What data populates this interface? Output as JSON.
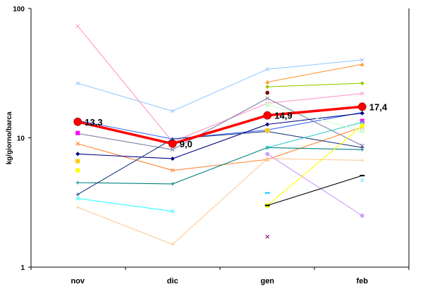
{
  "chart_data": {
    "type": "line",
    "title": "",
    "xlabel": "",
    "ylabel": "kg/giorno/barca",
    "yscale": "log",
    "ylim": [
      1,
      100
    ],
    "yticks": [
      "1",
      "10",
      "100"
    ],
    "grid": false,
    "legend": "none",
    "categories": [
      "nov",
      "dic",
      "gen",
      "feb"
    ],
    "highlight": {
      "color": "#ff0000",
      "values": [
        13.3,
        9.0,
        14.9,
        17.4
      ],
      "labels": [
        "13,3",
        "9,0",
        "14,9",
        "17,4"
      ]
    },
    "series": [
      {
        "color": "#ff99cc",
        "marker": "x",
        "values": [
          73,
          9.3,
          18.5,
          22
        ]
      },
      {
        "color": "#99ccff",
        "marker": "x",
        "values": [
          26.4,
          16.1,
          33.9,
          40
        ]
      },
      {
        "color": "#3366ff",
        "marker": "triangle",
        "values": [
          13.6,
          9.8,
          11.5,
          15.7
        ]
      },
      {
        "color": "#8080a8",
        "marker": "x",
        "values": [
          10.8,
          8.1,
          20.2,
          8.7
        ]
      },
      {
        "color": "#ff8533",
        "marker": "x",
        "values": [
          9.0,
          5.6,
          6.8,
          12.1
        ]
      },
      {
        "color": "#000080",
        "marker": "diamond",
        "values": [
          7.5,
          6.9,
          12.7,
          15.5
        ]
      },
      {
        "color": "#008080",
        "marker": "plus",
        "values": [
          4.5,
          4.4,
          8.4,
          8.1
        ]
      },
      {
        "color": "#1f3f7f",
        "marker": "plus",
        "values": [
          3.65,
          9.8,
          11.2,
          8.4
        ]
      },
      {
        "color": "#33ffff",
        "marker": "x",
        "values": [
          3.4,
          2.7,
          null,
          null
        ]
      },
      {
        "color": "#ffcc99",
        "marker": "plus",
        "values": [
          2.9,
          1.5,
          6.9,
          6.7
        ]
      },
      {
        "color": "#ff9933",
        "marker": "triangle",
        "values": [
          null,
          null,
          27,
          37
        ]
      },
      {
        "color": "#99cc00",
        "marker": "diamond",
        "values": [
          null,
          null,
          24.8,
          26.4
        ]
      },
      {
        "color": "#800000",
        "marker": "circle",
        "values": [
          null,
          null,
          22.3,
          null
        ]
      },
      {
        "color": "#cc99ff",
        "marker": "circle",
        "values": [
          null,
          null,
          7.5,
          2.5
        ]
      },
      {
        "color": "#ffff00",
        "marker": "square",
        "values": [
          5.6,
          null,
          3.0,
          12.4
        ]
      },
      {
        "color": "#000000",
        "marker": "dash",
        "values": [
          null,
          null,
          3.0,
          5.1
        ]
      },
      {
        "color": "#00ccff",
        "marker": "dash",
        "values": [
          null,
          null,
          3.75,
          null
        ]
      },
      {
        "color": "#800080",
        "marker": "x",
        "values": [
          null,
          null,
          1.72,
          null
        ]
      },
      {
        "color": "#ff00ff",
        "marker": "square",
        "values": [
          10.9,
          null,
          null,
          13.5
        ]
      },
      {
        "color": "#33cccc",
        "marker": "x",
        "values": [
          null,
          null,
          8.4,
          13.2
        ]
      },
      {
        "color": "#66e0ff",
        "marker": "x",
        "values": [
          null,
          null,
          null,
          4.7
        ]
      },
      {
        "color": "#ccffcc",
        "marker": "square",
        "values": [
          null,
          null,
          18.0,
          11.3
        ]
      },
      {
        "color": "#ffcc00",
        "marker": "square",
        "values": [
          6.6,
          null,
          11.4,
          null
        ]
      }
    ]
  }
}
